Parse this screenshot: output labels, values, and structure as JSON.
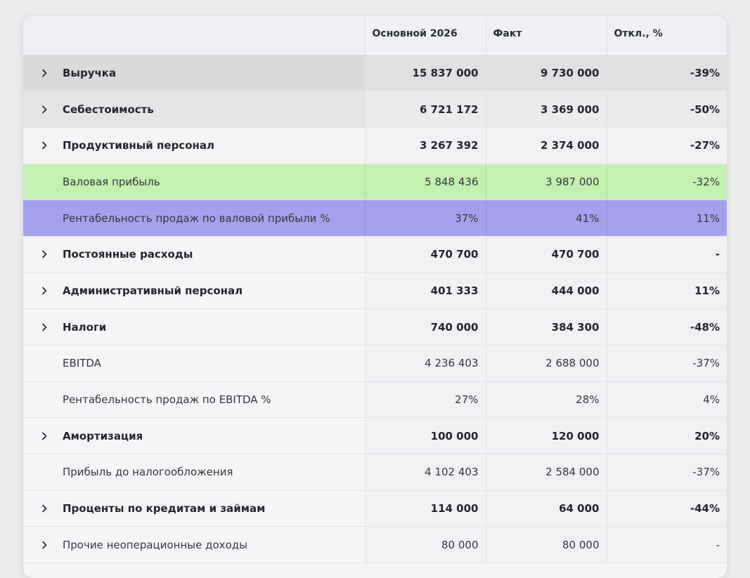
{
  "table": {
    "headers": [
      "",
      "Основной 2026",
      "Факт",
      "Откл., %"
    ],
    "rows": [
      {
        "label": "Выручка",
        "plan": "15 837 000",
        "fact": "9 730 000",
        "dev": "-39%"
      },
      {
        "label": "Себестоимость",
        "plan": "6 721 172",
        "fact": "3 369 000",
        "dev": "-50%"
      },
      {
        "label": "Продуктивный персонал",
        "plan": "3 267 392",
        "fact": "2 374 000",
        "dev": "-27%"
      },
      {
        "label": "Валовая прибыль",
        "plan": "5 848 436",
        "fact": "3 987 000",
        "dev": "-32%"
      },
      {
        "label": "Рентабельность продаж по валовой прибыли %",
        "plan": "37%",
        "fact": "41%",
        "dev": "11%"
      },
      {
        "label": "Постоянные расходы",
        "plan": "470 700",
        "fact": "470 700",
        "dev": "-"
      },
      {
        "label": "Административный персонал",
        "plan": "401 333",
        "fact": "444 000",
        "dev": "11%"
      },
      {
        "label": "Налоги",
        "plan": "740 000",
        "fact": "384 300",
        "dev": "-48%"
      },
      {
        "label": "EBITDA",
        "plan": "4 236 403",
        "fact": "2 688 000",
        "dev": "-37%"
      },
      {
        "label": "Рентабельность продаж по EBITDA %",
        "plan": "27%",
        "fact": "28%",
        "dev": "4%"
      },
      {
        "label": "Амортизация",
        "plan": "100 000",
        "fact": "120 000",
        "dev": "20%"
      },
      {
        "label": "Прибыль до налогообложения",
        "plan": "4 102 403",
        "fact": "2 584 000",
        "dev": "-37%"
      },
      {
        "label": "Проценты по кредитам и займам",
        "plan": "114 000",
        "fact": "64 000",
        "dev": "-44%"
      },
      {
        "label": "Прочие неоперационные доходы",
        "plan": "80 000",
        "fact": "80 000",
        "dev": "-"
      }
    ]
  },
  "colors": {
    "gross_profit_row": "#c4f0b0",
    "gross_margin_row": "#a2a2ec",
    "revenue_row": "#dadadc"
  },
  "icons": {
    "expand": "chevron-right-icon"
  }
}
